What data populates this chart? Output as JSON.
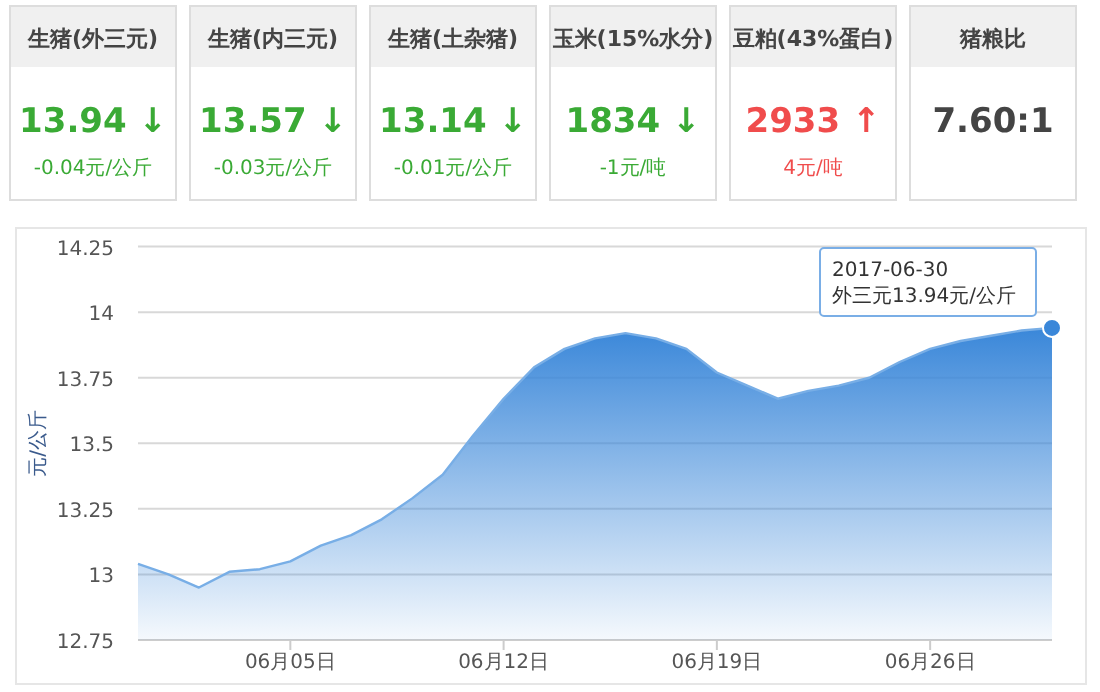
{
  "chart_data": [
    {
      "type": "other",
      "categories": [
        "生猪(外三元)",
        "生猪(内三元)",
        "生猪(土杂猪)",
        "玉米(15%水分)",
        "豆粕(43%蛋白)",
        "猪粮比"
      ],
      "values": [
        13.94,
        13.57,
        13.14,
        1834,
        2933,
        7.6
      ],
      "value_labels": [
        "13.94 ↓",
        "13.57 ↓",
        "13.14 ↓",
        "1834 ↓",
        "2933 ↑",
        "7.60:1"
      ],
      "annotations": [
        "-0.04元/公斤",
        "-0.03元/公斤",
        "-0.01元/公斤",
        "-1元/吨",
        "4元/吨"
      ]
    },
    {
      "type": "area",
      "ylabel": "元/公斤",
      "color": "#3a87d9",
      "grid": "y",
      "x": [
        "2017-05-31",
        "2017-06-01",
        "2017-06-02",
        "2017-06-03",
        "2017-06-04",
        "2017-06-05",
        "2017-06-06",
        "2017-06-07",
        "2017-06-08",
        "2017-06-09",
        "2017-06-10",
        "2017-06-11",
        "2017-06-12",
        "2017-06-13",
        "2017-06-14",
        "2017-06-15",
        "2017-06-16",
        "2017-06-17",
        "2017-06-18",
        "2017-06-19",
        "2017-06-20",
        "2017-06-21",
        "2017-06-22",
        "2017-06-23",
        "2017-06-24",
        "2017-06-25",
        "2017-06-26",
        "2017-06-27",
        "2017-06-28",
        "2017-06-29",
        "2017-06-30"
      ],
      "values": [
        13.04,
        13.0,
        12.95,
        13.01,
        13.02,
        13.05,
        13.11,
        13.15,
        13.21,
        13.29,
        13.38,
        13.53,
        13.67,
        13.79,
        13.86,
        13.9,
        13.92,
        13.9,
        13.86,
        13.77,
        13.72,
        13.67,
        13.7,
        13.72,
        13.75,
        13.81,
        13.86,
        13.89,
        13.91,
        13.93,
        13.94
      ],
      "xlim": [
        "2017-05-31",
        "2017-06-30"
      ],
      "xticks": [
        {
          "value": "2017-06-05",
          "label": "06月05日"
        },
        {
          "value": "2017-06-12",
          "label": "06月12日"
        },
        {
          "value": "2017-06-19",
          "label": "06月19日"
        },
        {
          "value": "2017-06-26",
          "label": "06月26日"
        }
      ],
      "ylim": [
        12.75,
        14.25
      ],
      "yticks": [
        12.75,
        13,
        13.25,
        13.5,
        13.75,
        14,
        14.25
      ],
      "annotations": [
        {
          "text": "2017-06-30\n外三元13.94元/公斤",
          "x": "2017-06-30",
          "y": 13.94
        }
      ]
    }
  ]
}
